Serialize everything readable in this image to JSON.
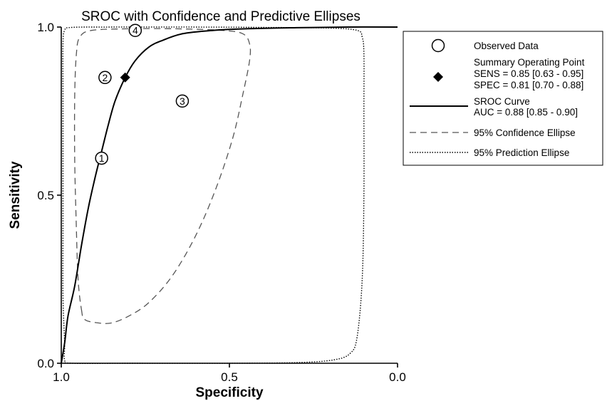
{
  "chart_data": {
    "type": "scatter",
    "title": "SROC with Confidence and Predictive Ellipses",
    "xlabel": "Specificity",
    "ylabel": "Sensitivity",
    "xlim": [
      1.0,
      0.0
    ],
    "ylim": [
      0.0,
      1.0
    ],
    "x_reversed": true,
    "x_ticks": [
      {
        "value": 1.0,
        "label": "1.0"
      },
      {
        "value": 0.5,
        "label": "0.5"
      },
      {
        "value": 0.0,
        "label": "0.0"
      }
    ],
    "y_ticks": [
      {
        "value": 0.0,
        "label": "0.0"
      },
      {
        "value": 0.5,
        "label": "0.5"
      },
      {
        "value": 1.0,
        "label": "1.0"
      }
    ],
    "grid": false,
    "legend_position": "right",
    "observed_data": {
      "name": "Observed Data",
      "points": [
        {
          "label": "1",
          "spec": 0.88,
          "sens": 0.61
        },
        {
          "label": "2",
          "spec": 0.87,
          "sens": 0.85
        },
        {
          "label": "3",
          "spec": 0.64,
          "sens": 0.78
        },
        {
          "label": "4",
          "spec": 0.78,
          "sens": 0.99
        }
      ]
    },
    "summary_point": {
      "name": "Summary Operating Point",
      "spec": 0.81,
      "sens": 0.85,
      "sens_text": "SENS = 0.85 [0.63 - 0.95]",
      "spec_text": "SPEC = 0.81 [0.70 - 0.88]"
    },
    "sroc_curve": {
      "name": "SROC Curve",
      "auc_text": "AUC = 0.88 [0.85 - 0.90]",
      "points": [
        [
          1.0,
          0.0
        ],
        [
          0.99,
          0.06
        ],
        [
          0.98,
          0.14
        ],
        [
          0.96,
          0.23
        ],
        [
          0.94,
          0.35
        ],
        [
          0.92,
          0.46
        ],
        [
          0.9,
          0.55
        ],
        [
          0.88,
          0.63
        ],
        [
          0.86,
          0.71
        ],
        [
          0.84,
          0.78
        ],
        [
          0.81,
          0.85
        ],
        [
          0.78,
          0.9
        ],
        [
          0.74,
          0.94
        ],
        [
          0.7,
          0.96
        ],
        [
          0.64,
          0.98
        ],
        [
          0.55,
          0.99
        ],
        [
          0.45,
          0.995
        ],
        [
          0.3,
          0.998
        ],
        [
          0.15,
          1.0
        ],
        [
          0.0,
          1.0
        ]
      ]
    },
    "confidence_ellipse": {
      "name": "95% Confidence Ellipse",
      "points": [
        [
          0.94,
          0.16
        ],
        [
          0.93,
          0.13
        ],
        [
          0.89,
          0.12
        ],
        [
          0.85,
          0.12
        ],
        [
          0.8,
          0.14
        ],
        [
          0.74,
          0.18
        ],
        [
          0.67,
          0.26
        ],
        [
          0.6,
          0.38
        ],
        [
          0.54,
          0.52
        ],
        [
          0.49,
          0.67
        ],
        [
          0.46,
          0.8
        ],
        [
          0.44,
          0.9
        ],
        [
          0.44,
          0.95
        ],
        [
          0.46,
          0.98
        ],
        [
          0.52,
          0.99
        ],
        [
          0.66,
          0.995
        ],
        [
          0.8,
          0.995
        ],
        [
          0.91,
          0.99
        ],
        [
          0.945,
          0.97
        ],
        [
          0.955,
          0.92
        ],
        [
          0.96,
          0.8
        ],
        [
          0.96,
          0.6
        ],
        [
          0.955,
          0.4
        ],
        [
          0.95,
          0.25
        ],
        [
          0.94,
          0.16
        ]
      ]
    },
    "prediction_ellipse": {
      "name": "95% Prediction Ellipse",
      "points": [
        [
          0.99,
          0.06
        ],
        [
          0.99,
          0.01
        ],
        [
          0.97,
          0.0
        ],
        [
          0.8,
          0.0
        ],
        [
          0.5,
          0.0
        ],
        [
          0.3,
          0.002
        ],
        [
          0.19,
          0.01
        ],
        [
          0.14,
          0.03
        ],
        [
          0.12,
          0.08
        ],
        [
          0.105,
          0.25
        ],
        [
          0.1,
          0.5
        ],
        [
          0.1,
          0.75
        ],
        [
          0.1,
          0.92
        ],
        [
          0.105,
          0.97
        ],
        [
          0.12,
          0.99
        ],
        [
          0.2,
          0.997
        ],
        [
          0.4,
          0.999
        ],
        [
          0.6,
          1.0
        ],
        [
          0.85,
          1.0
        ],
        [
          0.97,
          0.999
        ],
        [
          0.99,
          0.99
        ],
        [
          0.995,
          0.95
        ],
        [
          0.995,
          0.8
        ],
        [
          0.995,
          0.6
        ],
        [
          0.995,
          0.4
        ],
        [
          0.995,
          0.2
        ],
        [
          0.99,
          0.06
        ]
      ]
    },
    "colors": {
      "line": "#000000",
      "background": "#ffffff"
    }
  }
}
